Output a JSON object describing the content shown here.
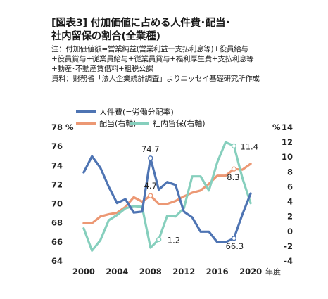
{
  "figure": {
    "title_line1": "[図表3] 付加価値に占める人件費･配当･",
    "title_line2": "社内留保の割合(全業種)",
    "notes": [
      "注：付加価値額=営業純益(営業利益ー支払利息等)+役員給与",
      "+役員賞与+従業員給与+従業員賞与+福利厚生費+支払利息等",
      "+動産･不動産賃借料+租税公課",
      "資料：財務省「法人企業統計調査」よりニッセイ基礎研究所作成"
    ]
  },
  "colors": {
    "labor": "#4e74b3",
    "dividend": "#ec9874",
    "retained": "#86cfbd",
    "text": "#222222",
    "marker_fill": "#ffffff"
  },
  "chart_data": {
    "type": "line",
    "x": [
      1999,
      2000,
      2001,
      2002,
      2003,
      2004,
      2005,
      2006,
      2007,
      2008,
      2009,
      2010,
      2011,
      2012,
      2013,
      2014,
      2015,
      2016,
      2017,
      2018,
      2019,
      2020
    ],
    "left_axis": {
      "unit_label": "%",
      "ylim": [
        64,
        78
      ],
      "ticks": [
        64,
        66,
        68,
        70,
        72,
        74,
        76,
        78
      ],
      "tick_labels": [
        "64",
        "66",
        "68",
        "70",
        "72",
        "74",
        "76",
        "78 %"
      ]
    },
    "right_axis": {
      "unit_label": "%",
      "ylim": [
        -4,
        14
      ],
      "ticks": [
        -4,
        -2,
        0,
        2,
        4,
        6,
        8,
        10,
        12,
        14
      ],
      "tick_labels": [
        "-4",
        "-2",
        "0",
        "2",
        "4",
        "6",
        "8",
        "10",
        "12",
        "14"
      ]
    },
    "x_ticks": [
      2000,
      2004,
      2008,
      2012,
      2016,
      2020
    ],
    "x_tick_labels": [
      "2000",
      "2004",
      "2008",
      "2012",
      "2016",
      "2020"
    ],
    "x_unit_label": "年度",
    "series": [
      {
        "key": "labor",
        "name": "人件費(=労働分配率)",
        "axis": "left",
        "x": [
          2000,
          2001,
          2002,
          2003,
          2004,
          2005,
          2006,
          2007,
          2008,
          2009,
          2010,
          2011,
          2012,
          2013,
          2014,
          2015,
          2016,
          2017,
          2018,
          2019,
          2020
        ],
        "values": [
          73.2,
          74.9,
          73.7,
          71.7,
          70.0,
          70.4,
          69.0,
          69.1,
          74.7,
          71.4,
          72.2,
          71.9,
          69.1,
          68.5,
          67.0,
          67.0,
          65.9,
          65.9,
          66.3,
          68.8,
          71.0
        ],
        "labels": [
          {
            "x": 2008,
            "text": "74.7"
          },
          {
            "x": 2018,
            "text": "66.3"
          }
        ]
      },
      {
        "key": "dividend",
        "name": "配当(右軸)",
        "axis": "right",
        "x": [
          2000,
          2001,
          2002,
          2003,
          2004,
          2005,
          2006,
          2007,
          2008,
          2009,
          2010,
          2011,
          2012,
          2013,
          2014,
          2015,
          2016,
          2017,
          2018,
          2019,
          2020
        ],
        "values": [
          1.0,
          1.0,
          1.9,
          2.2,
          2.4,
          3.2,
          4.5,
          3.9,
          4.7,
          3.6,
          3.6,
          4.0,
          4.6,
          5.1,
          5.4,
          6.3,
          7.4,
          7.4,
          8.3,
          8.2,
          9.0
        ],
        "labels": [
          {
            "x": 2008,
            "text": "4.7"
          },
          {
            "x": 2018,
            "text": "8.3"
          }
        ]
      },
      {
        "key": "retained",
        "name": "社内留保(右軸)",
        "axis": "right",
        "x": [
          2000,
          2001,
          2002,
          2003,
          2004,
          2005,
          2006,
          2007,
          2008,
          2009,
          2010,
          2011,
          2012,
          2013,
          2014,
          2015,
          2016,
          2017,
          2018,
          2019,
          2020
        ],
        "values": [
          0.3,
          -2.7,
          -1.3,
          1.4,
          2.1,
          3.0,
          3.3,
          3.2,
          -2.3,
          -1.2,
          2.0,
          1.9,
          3.0,
          7.3,
          7.3,
          5.4,
          9.2,
          11.9,
          11.4,
          7.1,
          3.7
        ],
        "labels": [
          {
            "x": 2009,
            "text": "-1.2"
          },
          {
            "x": 2018,
            "text": "11.4"
          }
        ]
      }
    ],
    "legend_placement": "top",
    "grid": false
  }
}
